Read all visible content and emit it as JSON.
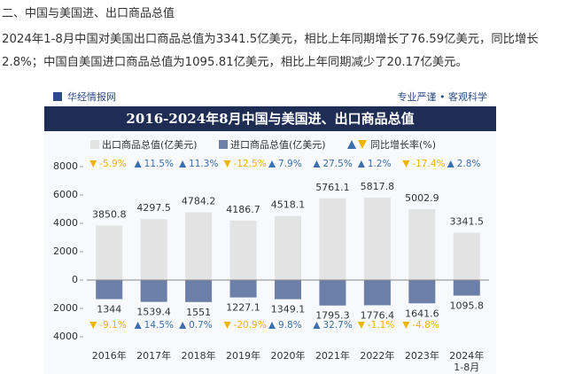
{
  "heading": "二、中国与美国进、出口商品总值",
  "paragraph": "2024年1-8月中国对美国出口商品总值为3341.5亿美元，相比上年同期增长了76.59亿美元，同比增长2.8%；中国自美国进口商品总值为1095.81亿美元，相比上年同期减少了20.17亿美元。",
  "chart_data": {
    "type": "bar",
    "brand": "华经情报网",
    "slogan": "专业严谨 • 客观科学",
    "title": "2016-2024年8月中国与美国进、出口商品总值",
    "categories": [
      "2016年",
      "2017年",
      "2018年",
      "2019年",
      "2020年",
      "2021年",
      "2022年",
      "2023年",
      "2024年1-8月"
    ],
    "series": [
      {
        "name": "出口商品总值(亿美元)",
        "color": "#e3e3e3",
        "values": [
          3850.8,
          4297.5,
          4784.2,
          4186.7,
          4518.1,
          5761.1,
          5817.8,
          5002.9,
          3341.5
        ],
        "growth": [
          -5.9,
          11.5,
          11.3,
          -12.5,
          7.9,
          27.5,
          1.2,
          -17.4,
          2.8
        ],
        "growth_labels": [
          "-5.9%",
          "11.5%",
          "11.3%",
          "-12.5%",
          "7.9%",
          "27.5%",
          "1.2%",
          "-17.4%",
          "2.8%"
        ]
      },
      {
        "name": "进口商品总值(亿美元)",
        "color": "#6b7fa8",
        "values": [
          -1344,
          -1539.4,
          -1551,
          -1227.1,
          -1349.1,
          -1795.3,
          -1776.4,
          -1641.6,
          -1095.8
        ],
        "value_labels": [
          "1344",
          "1539.4",
          "1551",
          "1227.1",
          "1349.1",
          "1795.3",
          "1776.4",
          "1641.6",
          "1095.8"
        ],
        "growth": [
          -9.1,
          14.5,
          0.7,
          -20.9,
          9.8,
          32.7,
          -1.1,
          -4.8,
          null
        ],
        "growth_labels": [
          "-9.1%",
          "14.5%",
          "0.7%",
          "-20.9%",
          "9.8%",
          "32.7%",
          "-1.1%",
          "-4.8%",
          null
        ]
      }
    ],
    "growth_legend": "同比增长率(%)",
    "up_color": "#3a6fb0",
    "down_color": "#f0b400",
    "ylim": [
      -4000,
      8000
    ],
    "yticks": [
      8000,
      6000,
      4000,
      2000,
      0,
      {
        "value": -2000,
        "label": "2000"
      },
      {
        "value": -4000,
        "label": "4000"
      }
    ]
  }
}
